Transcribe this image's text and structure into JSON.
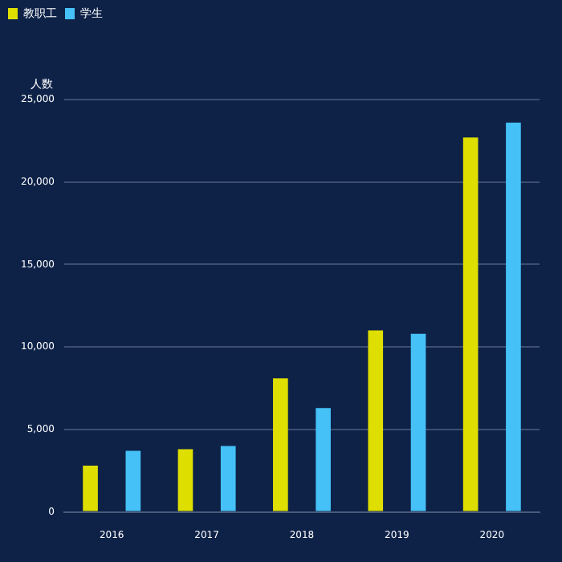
{
  "chart_data": {
    "type": "bar",
    "ylabel": "人数",
    "categories": [
      "2016",
      "2017",
      "2018",
      "2019",
      "2020"
    ],
    "series": [
      {
        "name": "教职工",
        "color": "#dede00",
        "values": [
          2800,
          3800,
          8100,
          11000,
          22700
        ]
      },
      {
        "name": "学生",
        "color": "#45c1f7",
        "values": [
          3700,
          4000,
          6300,
          10800,
          23600
        ]
      }
    ],
    "ylim": [
      0,
      25000
    ],
    "yticks": [
      {
        "value": 0,
        "label": "0"
      },
      {
        "value": 5000,
        "label": "5,000"
      },
      {
        "value": 10000,
        "label": "10,000"
      },
      {
        "value": 15000,
        "label": "15,000"
      },
      {
        "value": 20000,
        "label": "20,000"
      },
      {
        "value": 25000,
        "label": "25,000"
      }
    ],
    "grid": "y",
    "legend": "top left"
  }
}
